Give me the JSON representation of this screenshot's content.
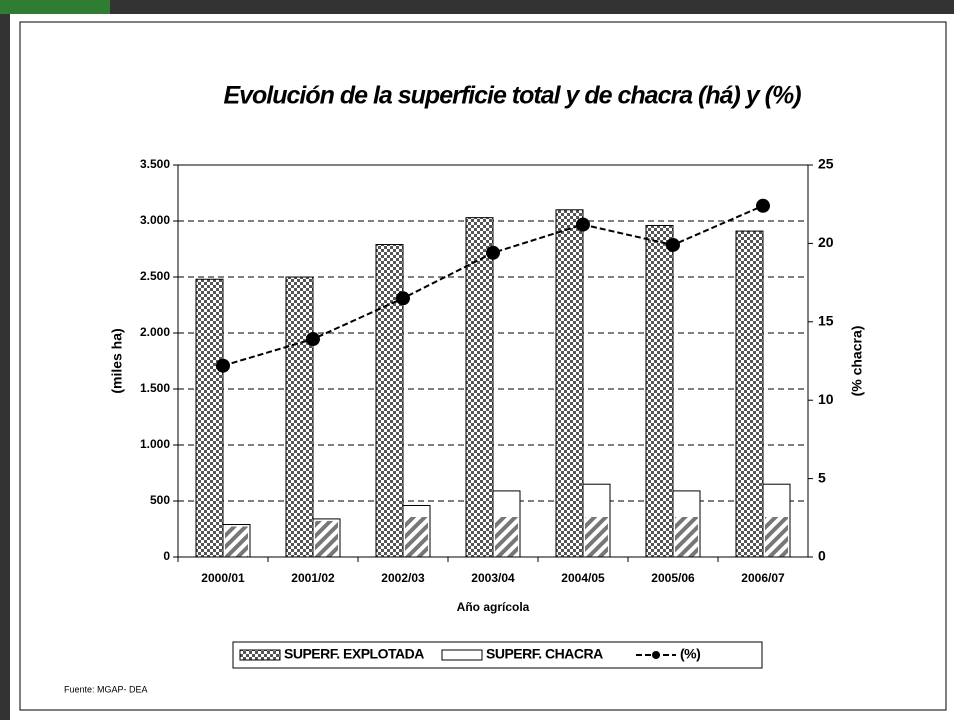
{
  "chart_data": {
    "type": "bar-line",
    "title": "Evolución de la superficie total y de chacra (há) y (%)",
    "y_label": "(miles ha)",
    "y2_label": "(% chacra)",
    "x_label": "Año agrícola",
    "source": "Fuente: MGAP- DEA",
    "categories": [
      "2000/01",
      "2001/02",
      "2002/03",
      "2003/04",
      "2004/05",
      "2005/06",
      "2006/07"
    ],
    "series": [
      {
        "name": "SUPERF. EXPLOTADA",
        "type": "bar",
        "color": "#555555",
        "values": [
          2480,
          2500,
          2790,
          3030,
          3100,
          2960,
          2910
        ]
      },
      {
        "name": "SUPERF. CHACRA",
        "type": "bar",
        "color": "#ffffff",
        "values": [
          290,
          340,
          460,
          590,
          650,
          590,
          650
        ]
      },
      {
        "name": "(%)",
        "type": "line",
        "axis": "y2",
        "color": "#000000",
        "values": [
          12.2,
          13.9,
          16.5,
          19.4,
          21.2,
          19.9,
          22.4
        ]
      }
    ],
    "ylim": [
      0,
      3500
    ],
    "yticks": [
      0,
      {
        "value": 500,
        "label": "500"
      },
      {
        "value": 1000,
        "label": "1.000"
      },
      {
        "value": 1500,
        "label": "1.500"
      },
      {
        "value": 2000,
        "label": "2.000"
      },
      {
        "value": 2500,
        "label": "2.500"
      },
      {
        "value": 3000,
        "label": "3.000"
      },
      {
        "value": 3500,
        "label": "3.500"
      }
    ],
    "y2lim": [
      0,
      25
    ],
    "y2ticks": [
      0,
      5,
      10,
      15,
      20,
      25
    ],
    "grid": true
  }
}
